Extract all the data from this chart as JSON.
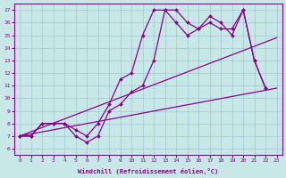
{
  "xlabel": "Windchill (Refroidissement éolien,°C)",
  "ylabel": "",
  "bg_color": "#c8e8e8",
  "line_color": "#8b008b",
  "xlim": [
    -0.5,
    23.5
  ],
  "ylim": [
    5.5,
    17.5
  ],
  "xticks": [
    0,
    1,
    2,
    3,
    4,
    5,
    6,
    7,
    8,
    9,
    10,
    11,
    12,
    13,
    14,
    15,
    16,
    17,
    18,
    19,
    20,
    21,
    22,
    23
  ],
  "yticks": [
    6,
    7,
    8,
    9,
    10,
    11,
    12,
    13,
    14,
    15,
    16,
    17
  ],
  "line1_x": [
    0,
    1,
    2,
    3,
    4,
    5,
    6,
    7,
    8,
    9,
    10,
    11,
    12,
    13,
    14,
    15,
    16,
    17,
    18,
    19,
    20,
    21,
    22
  ],
  "line1_y": [
    7,
    7,
    8,
    8,
    8,
    7,
    6.5,
    7,
    9,
    9.5,
    10.5,
    11,
    13,
    17,
    17,
    16,
    15.5,
    16.5,
    16,
    15,
    17,
    13,
    10.8
  ],
  "line2_x": [
    0,
    1,
    2,
    3,
    4,
    5,
    6,
    7,
    8,
    9,
    10,
    11,
    12,
    13,
    14,
    15,
    16,
    17,
    18,
    19,
    20,
    21,
    22
  ],
  "line2_y": [
    7,
    7,
    8,
    8,
    8,
    7.5,
    7,
    8,
    9.5,
    11.5,
    12,
    15,
    17,
    17,
    16,
    15,
    15.5,
    16,
    15.5,
    15.5,
    17,
    13,
    10.8
  ],
  "line3_x": [
    0,
    23
  ],
  "line3_y": [
    7,
    10.8
  ],
  "line4_x": [
    0,
    23
  ],
  "line4_y": [
    7,
    14.8
  ]
}
